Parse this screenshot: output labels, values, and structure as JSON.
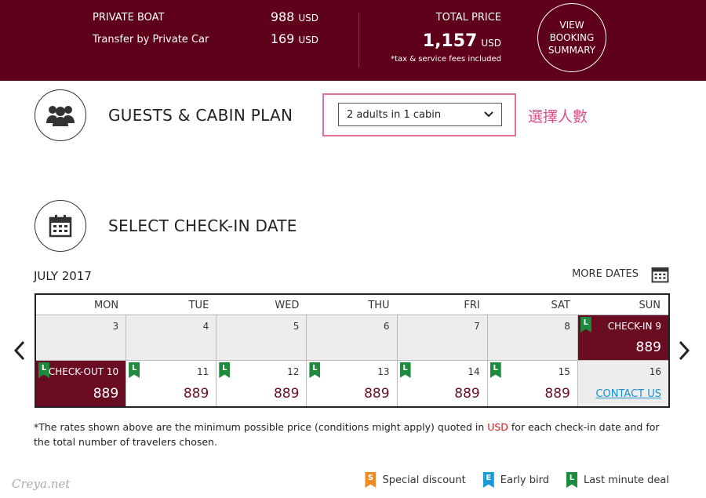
{
  "header": {
    "items": [
      {
        "label": "PRIVATE BOAT",
        "amount": 988,
        "currency": "USD"
      },
      {
        "label": "Transfer by Private Car",
        "amount": 169,
        "currency": "USD"
      }
    ],
    "total_label": "TOTAL PRICE",
    "total": "1,157",
    "total_currency": "USD",
    "fee_note": "*tax & service fees included",
    "summary_button": "VIEW BOOKING SUMMARY"
  },
  "guests": {
    "title": "GUESTS & CABIN PLAN",
    "select": "2 adults in 1 cabin",
    "annotation": "選擇人數"
  },
  "checkin": {
    "title": "SELECT CHECK-IN DATE",
    "month": "JULY 2017",
    "more_dates": "MORE DATES"
  },
  "calendar": {
    "weekdays": [
      "MON",
      "TUE",
      "WED",
      "THU",
      "FRI",
      "SAT",
      "SUN"
    ],
    "rows": [
      [
        {
          "day": 3
        },
        {
          "day": 4
        },
        {
          "day": 5
        },
        {
          "day": 6
        },
        {
          "day": 7
        },
        {
          "day": 8
        },
        {
          "badge": "L",
          "label": "CHECK-IN 9",
          "price": 889
        }
      ],
      [
        {
          "badge": "L",
          "label": "CHECK-OUT 10",
          "price": 889
        },
        {
          "day": 11,
          "badge": "L",
          "price": 889
        },
        {
          "day": 12,
          "badge": "L",
          "price": 889
        },
        {
          "day": 13,
          "badge": "L",
          "price": 889
        },
        {
          "day": 14,
          "badge": "L",
          "price": 889
        },
        {
          "day": 15,
          "badge": "L",
          "price": 889
        },
        {
          "day": 16,
          "link": "CONTACT US"
        }
      ]
    ]
  },
  "footnote": {
    "before": "*The rates shown above are the minimum possible price (conditions might apply) quoted in ",
    "currency": "USD",
    "after": " for each check-in date and for the total number of travelers chosen."
  },
  "legend": [
    {
      "badge": "S",
      "label": "Special discount",
      "color": "#f08a24"
    },
    {
      "badge": "E",
      "label": "Early bird",
      "color": "#1a9ad6"
    },
    {
      "badge": "L",
      "label": "Last minute deal",
      "color": "#1e8a3e"
    }
  ],
  "watermark": "Creya.net"
}
